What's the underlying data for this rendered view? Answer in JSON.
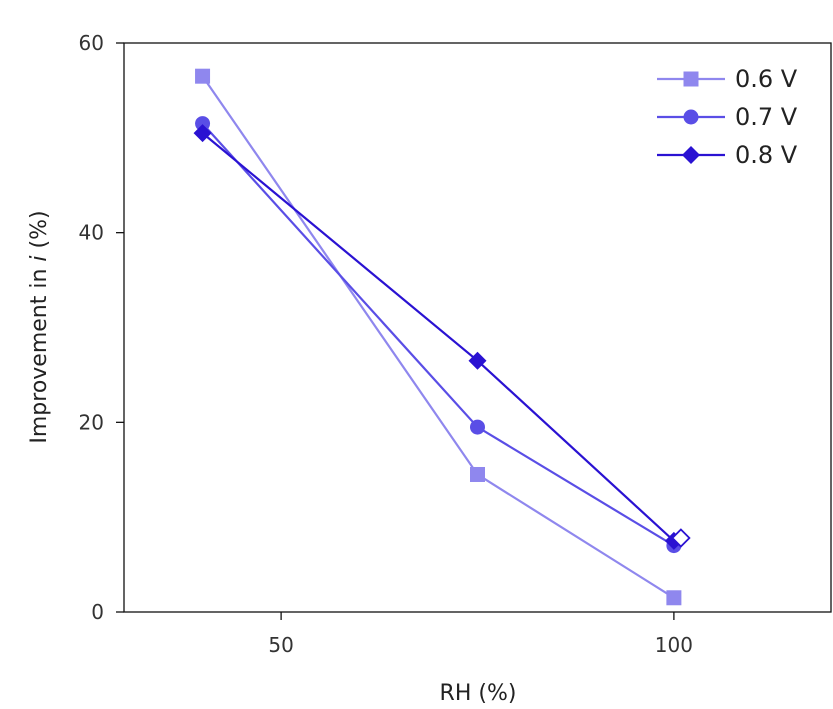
{
  "chart_data": {
    "type": "line",
    "title": "",
    "xlabel": "RH (%)",
    "ylabel_prefix": "Improvement in ",
    "ylabel_var": "i",
    "ylabel_suffix": " (%)",
    "xlim": [
      30,
      120
    ],
    "ylim": [
      0,
      60
    ],
    "xticks": [
      50,
      100
    ],
    "yticks": [
      0,
      20,
      40,
      60
    ],
    "grid": false,
    "legend_position": "top-right",
    "series": [
      {
        "name": "0.6 V",
        "marker": "square",
        "color": "#8f87ee",
        "x": [
          40,
          75,
          100
        ],
        "y": [
          56.5,
          14.5,
          1.5
        ]
      },
      {
        "name": "0.7 V",
        "marker": "circle",
        "color": "#5a4ee6",
        "x": [
          40,
          75,
          100
        ],
        "y": [
          51.5,
          19.5,
          7
        ]
      },
      {
        "name": "0.8 V",
        "marker": "diamond",
        "color": "#2a12d2",
        "x": [
          40,
          75,
          100
        ],
        "y": [
          50.5,
          26.5,
          7.5
        ]
      }
    ],
    "annotations": [
      {
        "description": "open diamond marker",
        "x": 100,
        "y": 7.8,
        "color": "#2a12d2"
      }
    ]
  }
}
